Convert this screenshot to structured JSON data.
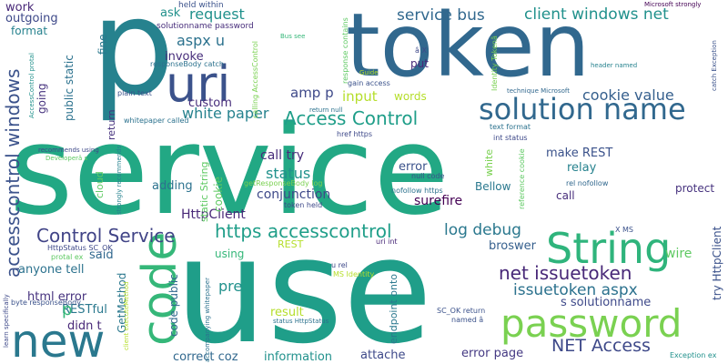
{
  "words": [
    {
      "id": "service",
      "text": "service",
      "color": "#22a884"
    },
    {
      "id": "use",
      "text": "use",
      "color": "#1f9e89"
    },
    {
      "id": "token",
      "text": "token",
      "color": "#31688e"
    },
    {
      "id": "p",
      "text": "p",
      "color": "#26828e"
    },
    {
      "id": "string",
      "text": "String",
      "color": "#2fb47c"
    },
    {
      "id": "password",
      "text": "password",
      "color": "#7ad151"
    },
    {
      "id": "new",
      "text": "new",
      "color": "#2a788e"
    },
    {
      "id": "code",
      "text": "code",
      "color": "#35b779"
    },
    {
      "id": "uri",
      "text": "uri",
      "color": "#3b528b"
    },
    {
      "id": "solution-name",
      "text": "solution name",
      "color": "#31688e"
    },
    {
      "id": "access-control",
      "text": "Access Control",
      "color": "#1f9e89"
    },
    {
      "id": "control-service",
      "text": "Control Service",
      "color": "#414487"
    },
    {
      "id": "https-accesscontrol",
      "text": "https accesscontrol",
      "color": "#1f9e89"
    },
    {
      "id": "service-bus",
      "text": "service bus",
      "color": "#31688e"
    },
    {
      "id": "client-windows-net",
      "text": "client windows net",
      "color": "#21918c"
    },
    {
      "id": "accesscontrol-windows",
      "text": "accesscontrol windows",
      "color": "#3b528b"
    },
    {
      "id": "net-issuetoken",
      "text": "net issuetoken",
      "color": "#482878"
    },
    {
      "id": "issuetoken-aspx",
      "text": "issuetoken aspx",
      "color": "#2c728e"
    },
    {
      "id": "net-access",
      "text": "NET Access",
      "color": "#3e4989"
    },
    {
      "id": "white-paper",
      "text": "white paper",
      "color": "#26828e"
    },
    {
      "id": "cookie-value",
      "text": "cookie value",
      "color": "#355f8d"
    },
    {
      "id": "log-debug",
      "text": "log debug",
      "color": "#2a788e"
    },
    {
      "id": "request",
      "text": "request",
      "color": "#21918c"
    },
    {
      "id": "aspx-u",
      "text": "aspx u",
      "color": "#2c728e"
    },
    {
      "id": "status",
      "text": "status",
      "color": "#21918c"
    },
    {
      "id": "amp-p",
      "text": "amp p",
      "color": "#3e4989"
    },
    {
      "id": "input",
      "text": "input",
      "color": "#b5de2b"
    },
    {
      "id": "pre",
      "text": "pre",
      "color": "#21918c"
    },
    {
      "id": "call-try",
      "text": "call try",
      "color": "#472d7b"
    },
    {
      "id": "conjunction",
      "text": "conjunction",
      "color": "#3e4989"
    },
    {
      "id": "httpclient",
      "text": "HttpClient",
      "color": "#482878"
    },
    {
      "id": "surefire",
      "text": "surefire",
      "color": "#440154"
    },
    {
      "id": "error",
      "text": "error",
      "color": "#3b528b"
    },
    {
      "id": "relay",
      "text": "relay",
      "color": "#26828e"
    },
    {
      "id": "make-rest",
      "text": "make REST",
      "color": "#3b528b"
    },
    {
      "id": "wire",
      "text": "wire",
      "color": "#5ec962"
    },
    {
      "id": "broswer",
      "text": "broswer",
      "color": "#355f8d"
    },
    {
      "id": "said",
      "text": "said",
      "color": "#31688e"
    },
    {
      "id": "anyone-tell",
      "text": "anyone tell",
      "color": "#2c728e"
    },
    {
      "id": "html-error",
      "text": "html error",
      "color": "#46327e"
    },
    {
      "id": "restful",
      "text": "RESTful",
      "color": "#2a788e"
    },
    {
      "id": "didn-t",
      "text": "didn t",
      "color": "#482878"
    },
    {
      "id": "p-small",
      "text": "p",
      "color": "#35b779"
    },
    {
      "id": "result",
      "text": "result",
      "color": "#b5de2b"
    },
    {
      "id": "information",
      "text": "information",
      "color": "#21918c"
    },
    {
      "id": "attache",
      "text": "attache",
      "color": "#3e4989"
    },
    {
      "id": "correct-coz",
      "text": "correct coz",
      "color": "#31688e"
    },
    {
      "id": "error-page",
      "text": "error page",
      "color": "#443983"
    },
    {
      "id": "s-solutionname",
      "text": "s solutionname",
      "color": "#3e4989"
    },
    {
      "id": "adding",
      "text": "adding",
      "color": "#2c728e"
    },
    {
      "id": "custom",
      "text": "custom",
      "color": "#472d7b"
    },
    {
      "id": "invoke",
      "text": "invoke",
      "color": "#472d7b"
    },
    {
      "id": "words",
      "text": "words",
      "color": "#b5de2b"
    },
    {
      "id": "ask",
      "text": "ask",
      "color": "#21918c"
    },
    {
      "id": "fine",
      "text": "fine",
      "color": "#2a788e"
    },
    {
      "id": "work",
      "text": "work",
      "color": "#482878"
    },
    {
      "id": "outgoing",
      "text": "outgoing",
      "color": "#3e4989"
    },
    {
      "id": "format",
      "text": "format",
      "color": "#26828e"
    },
    {
      "id": "going",
      "text": "going",
      "color": "#46327e"
    },
    {
      "id": "public-static",
      "text": "public static",
      "color": "#2c728e"
    },
    {
      "id": "put",
      "text": "put",
      "color": "#482878"
    },
    {
      "id": "call",
      "text": "call",
      "color": "#472d7b"
    },
    {
      "id": "protect",
      "text": "protect",
      "color": "#46327e"
    },
    {
      "id": "rest",
      "text": "REST",
      "color": "#b5de2b"
    },
    {
      "id": "using",
      "text": "using",
      "color": "#35b779"
    },
    {
      "id": "bellow",
      "text": "Bellow",
      "color": "#2a788e"
    },
    {
      "id": "cookie",
      "text": "cookie",
      "color": "#5ec962"
    },
    {
      "id": "white",
      "text": "white",
      "color": "#7ad151"
    },
    {
      "id": "return",
      "text": "return",
      "color": "#46327e"
    },
    {
      "id": "cloud",
      "text": "cloud",
      "color": "#5ec962"
    },
    {
      "id": "static-string",
      "text": "static String",
      "color": "#5ec962"
    },
    {
      "id": "getmethod",
      "text": "GetMethod",
      "color": "#2a788e"
    },
    {
      "id": "code-public",
      "text": "code public",
      "color": "#31688e"
    },
    {
      "id": "try-httpclient",
      "text": "try HttpClient",
      "color": "#3b528b"
    },
    {
      "id": "endpoint-onto",
      "text": "endpoint onto",
      "color": "#2a788e"
    },
    {
      "id": "held-within",
      "text": "held within",
      "color": "#3b528b"
    },
    {
      "id": "solutionname-password",
      "text": "solutionname password",
      "color": "#472d7b"
    },
    {
      "id": "responsebody-catch",
      "text": "responseBody catch",
      "color": "#2c728e"
    },
    {
      "id": "plain-text",
      "text": "plain text",
      "color": "#3b528b"
    },
    {
      "id": "whitepaper-called",
      "text": "whitepaper called",
      "color": "#2c728e"
    },
    {
      "id": "calling-accesscontrol",
      "text": "calling AccessControl",
      "color": "#7ad151"
    },
    {
      "id": "response-contains",
      "text": "response contains",
      "color": "#5ec962"
    },
    {
      "id": "bus-see",
      "text": "Bus see",
      "color": "#35b779"
    },
    {
      "id": "gain-access",
      "text": "gain access",
      "color": "#3b528b"
    },
    {
      "id": "return-null",
      "text": "return null",
      "color": "#2c728e"
    },
    {
      "id": "a-x",
      "text": "â X",
      "color": "#3e4989"
    },
    {
      "id": "guide",
      "text": "Guide",
      "color": "#b5de2b"
    },
    {
      "id": "identity-token",
      "text": "Identity Tokenâ",
      "color": "#7ad151"
    },
    {
      "id": "microsoft-strongly",
      "text": "Microsoft strongly",
      "color": "#440154"
    },
    {
      "id": "catch-exception",
      "text": "catch Exception",
      "color": "#3b528b"
    },
    {
      "id": "header-named",
      "text": "header named",
      "color": "#26828e"
    },
    {
      "id": "technique-microsoft",
      "text": "technique Microsoft",
      "color": "#31688e"
    },
    {
      "id": "text-format",
      "text": "text format",
      "color": "#2c728e"
    },
    {
      "id": "int-status",
      "text": "int status",
      "color": "#3e4989"
    },
    {
      "id": "href-https",
      "text": "href https",
      "color": "#3e4989"
    },
    {
      "id": "null-code",
      "text": "null code",
      "color": "#3b528b"
    },
    {
      "id": "nofollow-https",
      "text": "nofollow https",
      "color": "#2c728e"
    },
    {
      "id": "rel-nofollow",
      "text": "rel nofollow",
      "color": "#31688e"
    },
    {
      "id": "token-held",
      "text": "token held",
      "color": "#3e4989"
    },
    {
      "id": "getresponsebody-log",
      "text": "getResponseBody log",
      "color": "#7ad151"
    },
    {
      "id": "reference-cookie",
      "text": "reference cookie",
      "color": "#5ec962"
    },
    {
      "id": "x-ms",
      "text": "X MS",
      "color": "#3b528b"
    },
    {
      "id": "uri-int",
      "text": "uri int",
      "color": "#482878"
    },
    {
      "id": "u-rel",
      "text": "u rel",
      "color": "#3e4989"
    },
    {
      "id": "ms-identity",
      "text": "MS Identity",
      "color": "#b5de2b"
    },
    {
      "id": "sc-ok-return",
      "text": "SC_OK return",
      "color": "#3b528b"
    },
    {
      "id": "named-a",
      "text": "named â",
      "color": "#3b528b"
    },
    {
      "id": "status-httpstatus",
      "text": "status HttpStatus",
      "color": "#2c728e"
    },
    {
      "id": "httpstatus-sc-ok",
      "text": "HttpStatus SC_OK",
      "color": "#3e4989"
    },
    {
      "id": "protal-ex",
      "text": "protal ex",
      "color": "#5ec962"
    },
    {
      "id": "byte-responsebody",
      "text": "byte responseBody",
      "color": "#3b528b"
    },
    {
      "id": "learn-specifically",
      "text": "learn specifically",
      "color": "#3e4989"
    },
    {
      "id": "recommends-using",
      "text": "recommends using",
      "color": "#3e4989"
    },
    {
      "id": "developers",
      "text": "Developerâ s",
      "color": "#5ec962"
    },
    {
      "id": "accesscontrol-protal",
      "text": "AccessControl protal",
      "color": "#21918c"
    },
    {
      "id": "strongly-recommends",
      "text": "strongly recommends",
      "color": "#26828e"
    },
    {
      "id": "client-executemethod",
      "text": "client executeMethod",
      "color": "#b5de2b"
    },
    {
      "id": "accompanying-whitepaper",
      "text": "accompanying whitepaper",
      "color": "#2c728e"
    },
    {
      "id": "exception-ex",
      "text": "Exception ex",
      "color": "#21918c"
    }
  ]
}
